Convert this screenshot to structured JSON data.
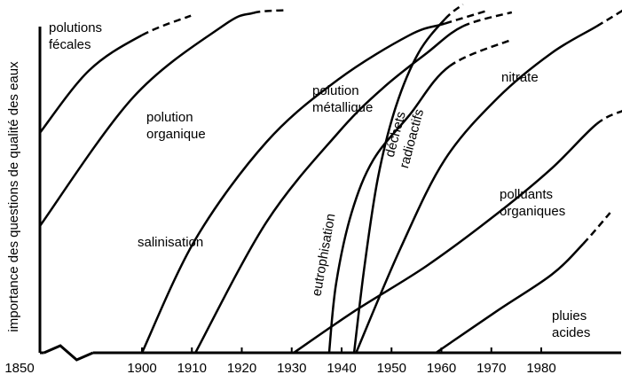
{
  "chart_data": {
    "type": "line",
    "y_label": "importance des questions de qualité des eaux",
    "xlim": [
      1850,
      1996
    ],
    "ylim": [
      0,
      102
    ],
    "xticks": [
      1850,
      1900,
      1910,
      1920,
      1930,
      1940,
      1950,
      1960,
      1970,
      1980
    ],
    "axis_break": [
      1860,
      1880
    ],
    "color": "#000000",
    "series": [
      {
        "name": "polutions fécales",
        "x": [
          1858.3,
          1878.3,
          1900,
          1909.8
        ],
        "values": [
          64.4,
          82.6,
          93,
          98.7
        ],
        "dashed_from": 2
      },
      {
        "name": "polution organique",
        "x": [
          1858.3,
          1896.4,
          1916.1,
          1922.3,
          1928.6
        ],
        "values": [
          37.1,
          74.8,
          95.6,
          99.5,
          100.3
        ],
        "dashed_from": 3
      },
      {
        "name": "salinisation",
        "x": [
          1900,
          1910.7,
          1925,
          1939.3,
          1953.6,
          1960.7,
          1968.8
        ],
        "values": [
          0,
          33.2,
          61.8,
          80,
          93,
          96.4,
          100
        ],
        "dashed_from": 5
      },
      {
        "name": "polution métallique",
        "x": [
          1910.7,
          1925,
          1939.3,
          1948.2,
          1957.1,
          1964.3,
          1974.1
        ],
        "values": [
          0,
          38.4,
          64.4,
          77.4,
          87.8,
          95.6,
          99.7
        ],
        "dashed_from": 5
      },
      {
        "name": "déchets radioactifs",
        "x": [
          1942.5,
          1944.6,
          1947.3,
          1950.9,
          1955.4,
          1960.7,
          1964.3
        ],
        "values": [
          0,
          25.5,
          51.4,
          72.2,
          87.8,
          97.7,
          102
        ],
        "dashed_from": 5
      },
      {
        "name": "eutrophisation",
        "x": [
          1937.5,
          1938.9,
          1942,
          1946.4,
          1953.6,
          1961.6,
          1974.1
        ],
        "values": [
          0,
          20.3,
          41,
          56.6,
          69.6,
          83.9,
          91.7
        ],
        "dashed_from": 5
      },
      {
        "name": "nitrate",
        "x": [
          1942.9,
          1951.8,
          1960.7,
          1971.4,
          1982.1,
          1991.1,
          1996.4
        ],
        "values": [
          0,
          30.6,
          56.6,
          74.8,
          87.8,
          95.6,
          100.3
        ],
        "dashed_from": 5
      },
      {
        "name": "polluants organiques",
        "x": [
          1930.4,
          1942.9,
          1957.1,
          1971.4,
          1982.1,
          1991.1,
          1996.4
        ],
        "values": [
          0,
          12.5,
          25.5,
          41,
          54,
          67,
          70.9
        ],
        "dashed_from": 5
      },
      {
        "name": "pluies acides",
        "x": [
          1958.9,
          1971.4,
          1982.1,
          1988.4,
          1993.8
        ],
        "values": [
          0,
          12.5,
          22.9,
          31.9,
          41
        ],
        "dashed_from": 3
      }
    ]
  }
}
